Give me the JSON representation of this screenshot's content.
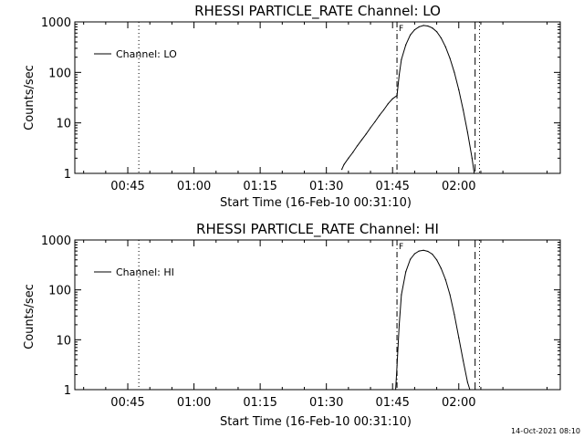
{
  "chart_data": [
    {
      "type": "line",
      "title": "RHESSI PARTICLE_RATE Channel: LO",
      "xlabel": "Start Time (16-Feb-10 00:31:10)",
      "ylabel": "Counts/sec",
      "x_unit": "minutes",
      "xlim": [
        33,
        143
      ],
      "ylim": [
        1,
        1000
      ],
      "y_scale": "log",
      "xticks": [
        {
          "x": 45,
          "label": "00:45"
        },
        {
          "x": 60,
          "label": "01:00"
        },
        {
          "x": 75,
          "label": "01:15"
        },
        {
          "x": 90,
          "label": "01:30"
        },
        {
          "x": 105,
          "label": "01:45"
        },
        {
          "x": 120,
          "label": "02:00"
        }
      ],
      "yticks": [
        {
          "y": 1,
          "label": "1"
        },
        {
          "y": 10,
          "label": "10"
        },
        {
          "y": 100,
          "label": "100"
        },
        {
          "y": 1000,
          "label": "1000"
        }
      ],
      "legend": "top-left",
      "series": [
        {
          "name": "Channel: LO",
          "x": [
            93.5,
            94.0,
            95.0,
            96.0,
            97.0,
            98.0,
            99.0,
            100.0,
            101.0,
            102.0,
            103.0,
            104.0,
            105.0,
            106.0,
            106.5,
            107.0,
            108.0,
            109.0,
            110.0,
            111.0,
            112.0,
            113.0,
            114.0,
            115.0,
            116.0,
            117.0,
            118.0,
            119.0,
            120.0,
            121.0,
            122.0,
            123.0,
            123.5
          ],
          "values": [
            1.2,
            1.5,
            2.0,
            2.6,
            3.5,
            4.6,
            6.0,
            8.0,
            10.5,
            14.0,
            18.0,
            24.0,
            30.0,
            35.0,
            90.0,
            180.0,
            350.0,
            550.0,
            700.0,
            800.0,
            850.0,
            830.0,
            760.0,
            640.0,
            480.0,
            320.0,
            190.0,
            100.0,
            45.0,
            18.0,
            6.5,
            2.0,
            1.0
          ]
        }
      ],
      "markers": [
        {
          "x": 47.5,
          "style": "dotted"
        },
        {
          "x": 106.0,
          "style": "dash-dot"
        },
        {
          "x": 123.7,
          "style": "dashed"
        },
        {
          "x": 124.7,
          "style": "dotted"
        }
      ],
      "flag_label": "F"
    },
    {
      "type": "line",
      "title": "RHESSI PARTICLE_RATE Channel: HI",
      "xlabel": "Start Time (16-Feb-10 00:31:10)",
      "ylabel": "Counts/sec",
      "x_unit": "minutes",
      "xlim": [
        33,
        143
      ],
      "ylim": [
        1,
        1000
      ],
      "y_scale": "log",
      "xticks": [
        {
          "x": 45,
          "label": "00:45"
        },
        {
          "x": 60,
          "label": "01:00"
        },
        {
          "x": 75,
          "label": "01:15"
        },
        {
          "x": 90,
          "label": "01:30"
        },
        {
          "x": 105,
          "label": "01:45"
        },
        {
          "x": 120,
          "label": "02:00"
        }
      ],
      "yticks": [
        {
          "y": 1,
          "label": "1"
        },
        {
          "y": 10,
          "label": "10"
        },
        {
          "y": 100,
          "label": "100"
        },
        {
          "y": 1000,
          "label": "1000"
        }
      ],
      "legend": "top-left",
      "series": [
        {
          "name": "Channel: HI",
          "x": [
            105.7,
            106.0,
            106.5,
            107.0,
            108.0,
            109.0,
            110.0,
            111.0,
            112.0,
            113.0,
            114.0,
            115.0,
            116.0,
            117.0,
            118.0,
            119.0,
            120.0,
            121.0,
            122.0,
            122.5
          ],
          "values": [
            1.0,
            3.0,
            20.0,
            80.0,
            230.0,
            410.0,
            530.0,
            600.0,
            620.0,
            590.0,
            520.0,
            400.0,
            270.0,
            160.0,
            80.0,
            32.0,
            11.0,
            3.8,
            1.4,
            1.0
          ]
        }
      ],
      "markers": [
        {
          "x": 47.5,
          "style": "dotted"
        },
        {
          "x": 106.0,
          "style": "dash-dot"
        },
        {
          "x": 123.7,
          "style": "dashed"
        },
        {
          "x": 124.7,
          "style": "dotted"
        }
      ],
      "flag_label": "F"
    }
  ],
  "timestamp": "14-Oct-2021 08:10"
}
